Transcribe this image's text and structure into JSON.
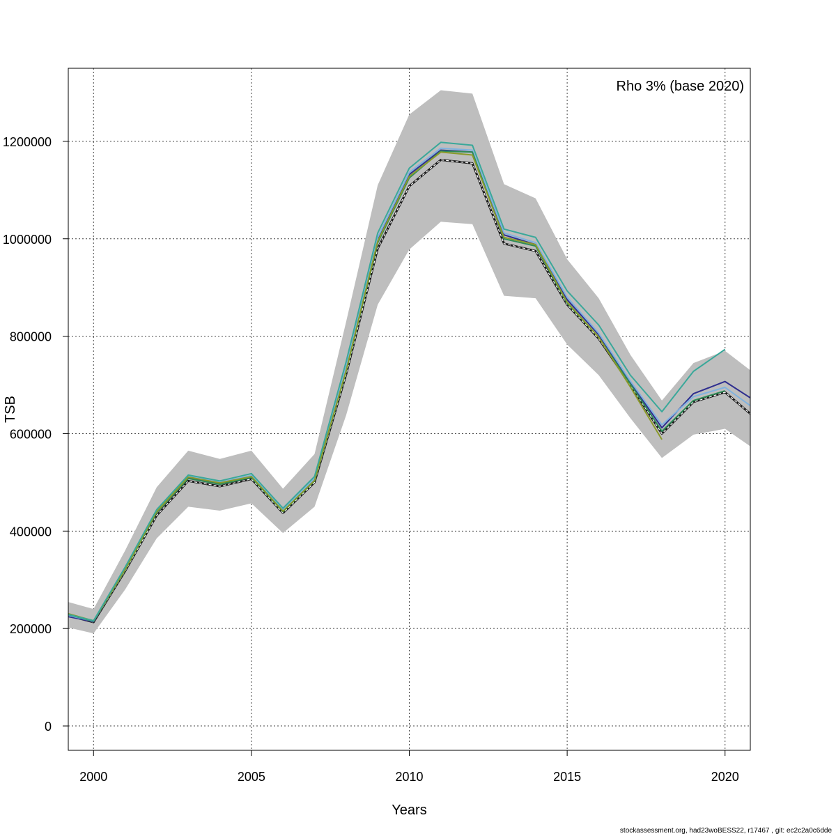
{
  "chart_data": {
    "type": "line",
    "xlabel": "Years",
    "ylabel": "TSB",
    "xlim": [
      1999.2,
      2020.8
    ],
    "ylim": [
      -50000,
      1350000
    ],
    "x_ticks": [
      2000,
      2005,
      2010,
      2015,
      2020
    ],
    "y_ticks": [
      0,
      200000,
      400000,
      600000,
      800000,
      1000000,
      1200000
    ],
    "grid": true,
    "legend_text": "Rho 3% (base 2020)",
    "legend_position": "top-right",
    "band": {
      "x": [
        1999,
        2000,
        2001,
        2002,
        2003,
        2004,
        2005,
        2006,
        2007,
        2008,
        2009,
        2010,
        2011,
        2012,
        2013,
        2014,
        2015,
        2016,
        2017,
        2018,
        2019,
        2020,
        2021
      ],
      "upper": [
        258000,
        240000,
        360000,
        490000,
        565000,
        548000,
        565000,
        487000,
        558000,
        830000,
        1110000,
        1255000,
        1305000,
        1298000,
        1112000,
        1083000,
        958000,
        878000,
        762000,
        668000,
        745000,
        770000,
        720000
      ],
      "lower": [
        205000,
        190000,
        280000,
        385000,
        450000,
        442000,
        457000,
        396000,
        450000,
        638000,
        865000,
        978000,
        1035000,
        1030000,
        883000,
        878000,
        783000,
        720000,
        632000,
        550000,
        598000,
        610000,
        565000
      ],
      "color": "#bebebe"
    },
    "series": [
      {
        "color": "#1a1a1a",
        "x": [
          1999,
          2000,
          2001,
          2002,
          2003,
          2004,
          2005,
          2006,
          2007,
          2008,
          2009,
          2010,
          2011,
          2012,
          2013,
          2014,
          2015,
          2016,
          2017,
          2018,
          2019,
          2020,
          2021
        ],
        "values": [
          230000,
          213000,
          318000,
          432000,
          503000,
          492000,
          507000,
          437000,
          500000,
          722000,
          980000,
          1108000,
          1162000,
          1155000,
          990000,
          975000,
          865000,
          795000,
          700000,
          600000,
          665000,
          685000,
          630000
        ],
        "dashed": true
      },
      {
        "color": "#2e2e8f",
        "x": [
          1999,
          2000,
          2001,
          2002,
          2003,
          2004,
          2005,
          2006,
          2007,
          2008,
          2009,
          2010,
          2011,
          2012,
          2013,
          2014,
          2015,
          2016,
          2017,
          2018,
          2019,
          2020,
          2021
        ],
        "values": [
          227000,
          214000,
          322000,
          440000,
          510000,
          498000,
          512000,
          442000,
          506000,
          735000,
          1000000,
          1132000,
          1182000,
          1178000,
          1008000,
          988000,
          875000,
          803000,
          705000,
          612000,
          682000,
          707000,
          665000
        ]
      },
      {
        "color": "#7fb2e0",
        "x": [
          1999,
          2000,
          2001,
          2002,
          2003,
          2004,
          2005,
          2006,
          2007,
          2008,
          2009,
          2010,
          2011,
          2012,
          2013,
          2014,
          2015,
          2016,
          2017,
          2018,
          2019,
          2020,
          2021
        ],
        "values": [
          230000,
          215000,
          324000,
          442000,
          512000,
          500000,
          514000,
          443000,
          508000,
          738000,
          1003000,
          1136000,
          1186000,
          1182000,
          1012000,
          992000,
          880000,
          806000,
          708000,
          618000,
          676000,
          695000,
          648000
        ]
      },
      {
        "color": "#2e8b57",
        "x": [
          1999,
          2000,
          2001,
          2002,
          2003,
          2004,
          2005,
          2006,
          2007,
          2008,
          2009,
          2010,
          2011,
          2012,
          2013,
          2014,
          2015,
          2016,
          2017,
          2018,
          2019,
          2020
        ],
        "values": [
          232000,
          215000,
          320000,
          438000,
          508000,
          496000,
          510000,
          440000,
          503000,
          728000,
          992000,
          1125000,
          1180000,
          1178000,
          1000000,
          985000,
          868000,
          798000,
          702000,
          605000,
          668000,
          688000
        ]
      },
      {
        "color": "#8a9a2a",
        "x": [
          1999,
          2000,
          2001,
          2002,
          2003,
          2004,
          2005,
          2006,
          2007,
          2008,
          2009,
          2010,
          2011,
          2012,
          2013,
          2014,
          2015,
          2016,
          2017,
          2018
        ],
        "values": [
          234000,
          216000,
          321000,
          440000,
          511000,
          499000,
          512000,
          441000,
          504000,
          730000,
          995000,
          1128000,
          1178000,
          1172000,
          1003000,
          988000,
          870000,
          798000,
          696000,
          588000
        ]
      },
      {
        "color": "#3aa89a",
        "x": [
          1999,
          2000,
          2001,
          2002,
          2003,
          2004,
          2005,
          2006,
          2007,
          2008,
          2009,
          2010,
          2011,
          2012,
          2013,
          2014,
          2015,
          2016,
          2017,
          2018,
          2019,
          2020
        ],
        "values": [
          232000,
          216000,
          326000,
          444000,
          515000,
          503000,
          518000,
          447000,
          512000,
          748000,
          1012000,
          1145000,
          1198000,
          1192000,
          1020000,
          1003000,
          893000,
          823000,
          720000,
          645000,
          728000,
          773000
        ]
      }
    ]
  },
  "footer": "stockassessment.org, had23woBESS22, r17467 , git: ec2c2a0c6dde"
}
